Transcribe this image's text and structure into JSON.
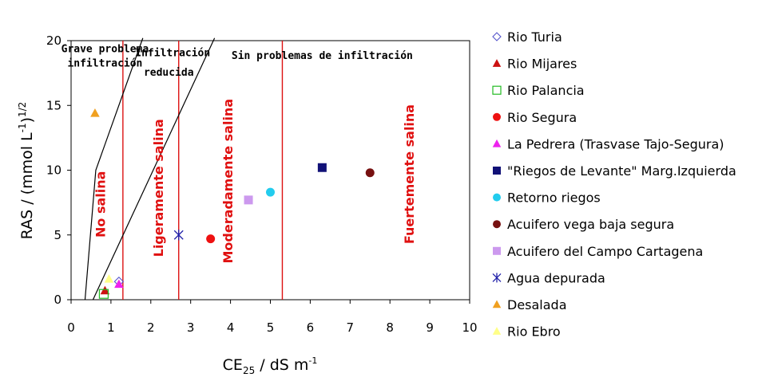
{
  "chart_data": {
    "type": "scatter",
    "xlabel_main": "CE",
    "xlabel_sub": "25",
    "xlabel_rest": " / dS m",
    "xlabel_sup": "-1",
    "ylabel_main": "RAS / (mmol L",
    "ylabel_sup1": "-1",
    "ylabel_close": ")",
    "ylabel_sup2": "1/2",
    "xlim": [
      0,
      10
    ],
    "ylim": [
      0,
      20
    ],
    "x_ticks": [
      "0",
      "1",
      "2",
      "3",
      "4",
      "5",
      "6",
      "7",
      "8",
      "9",
      "10"
    ],
    "y_ticks": [
      "0",
      "5",
      "10",
      "15",
      "20"
    ],
    "grid": false,
    "legend_position": "right",
    "salinity_limits": [
      1.3,
      2.7,
      5.3
    ],
    "infiltration_lines": [
      {
        "points": [
          [
            0.35,
            0
          ],
          [
            0.62,
            10
          ],
          [
            1.8,
            20.2
          ]
        ]
      },
      {
        "points": [
          [
            0.55,
            0
          ],
          [
            3.6,
            20.2
          ]
        ]
      }
    ],
    "zone_labels": [
      {
        "text": "No salina",
        "x": 0.85,
        "y": 4.8,
        "style": "red-vertical"
      },
      {
        "text": "Ligeramente salina",
        "x": 2.3,
        "y": 3.3,
        "style": "red-vertical"
      },
      {
        "text": "Moderadamente salina",
        "x": 4.05,
        "y": 2.8,
        "style": "red-vertical"
      },
      {
        "text": "Fuertemente salina",
        "x": 8.6,
        "y": 4.3,
        "style": "red-vertical"
      },
      {
        "text": "Grave problema",
        "x": 0.85,
        "y": 19.1,
        "style": "black"
      },
      {
        "text": "infiltración",
        "x": 0.85,
        "y": 18.0,
        "style": "black"
      },
      {
        "text": "Infiltración",
        "x": 2.55,
        "y": 18.8,
        "style": "black"
      },
      {
        "text": "reducida",
        "x": 2.45,
        "y": 17.3,
        "style": "black"
      },
      {
        "text": "Sin problemas de infiltración",
        "x": 6.3,
        "y": 18.6,
        "style": "black"
      }
    ],
    "series": [
      {
        "name": "Rio Turia",
        "marker": "diamond-open",
        "color": "#5555cc",
        "points": [
          [
            1.2,
            1.4
          ]
        ]
      },
      {
        "name": "Rio Mijares",
        "marker": "triangle",
        "color": "#cc1111",
        "points": [
          [
            0.85,
            0.7
          ]
        ]
      },
      {
        "name": "Rio Palancia",
        "marker": "square-open",
        "color": "#22bb22",
        "points": [
          [
            0.82,
            0.45
          ]
        ]
      },
      {
        "name": "Rio Segura",
        "marker": "circle",
        "color": "#ee1111",
        "points": [
          [
            3.5,
            4.7
          ]
        ]
      },
      {
        "name": "La Pedrera (Trasvase Tajo-Segura)",
        "marker": "triangle",
        "color": "#ee22ee",
        "points": [
          [
            1.2,
            1.2
          ]
        ]
      },
      {
        "name": "\"Riegos de Levante\" Marg.Izquierda",
        "marker": "square",
        "color": "#111177",
        "points": [
          [
            6.3,
            10.2
          ]
        ]
      },
      {
        "name": "Retorno riegos",
        "marker": "circle",
        "color": "#22ccee",
        "points": [
          [
            5.0,
            8.3
          ]
        ]
      },
      {
        "name": "Acuifero vega baja segura",
        "marker": "circle",
        "color": "#771111",
        "points": [
          [
            7.5,
            9.8
          ]
        ]
      },
      {
        "name": "Acuifero del Campo Cartagena",
        "marker": "square",
        "color": "#cc99ee",
        "points": [
          [
            4.45,
            7.7
          ]
        ]
      },
      {
        "name": "Agua depurada",
        "marker": "star",
        "color": "#2222aa",
        "points": [
          [
            2.7,
            5.0
          ]
        ]
      },
      {
        "name": "Desalada",
        "marker": "triangle",
        "color": "#f0a020",
        "points": [
          [
            0.6,
            14.4
          ]
        ]
      },
      {
        "name": "Rio Ebro",
        "marker": "triangle",
        "color": "#ffff88",
        "points": [
          [
            0.95,
            1.6
          ]
        ]
      }
    ]
  }
}
